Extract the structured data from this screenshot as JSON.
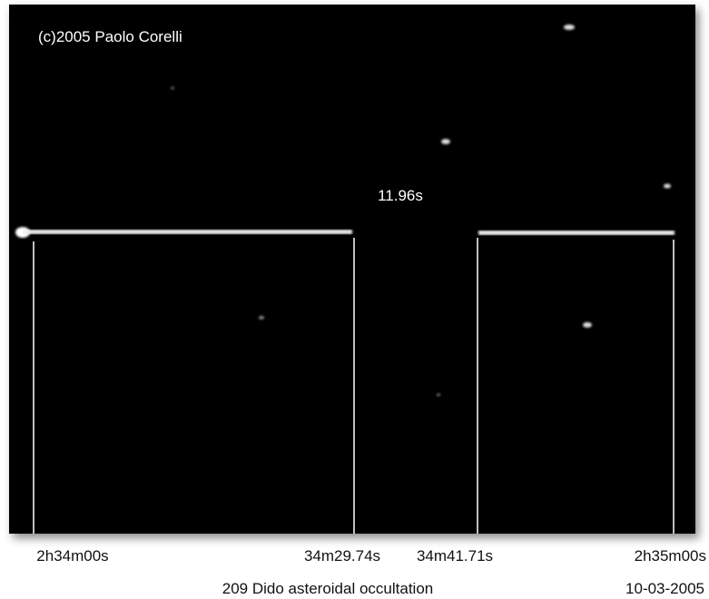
{
  "image": {
    "credit": "(c)2005 Paolo Corelli",
    "duration_label": "11.96s"
  },
  "time_labels": [
    "2h34m00s",
    "34m29.74s",
    "34m41.71s",
    "2h35m00s"
  ],
  "caption": "209 Dido asteroidal occultation",
  "date": "10-03-2005"
}
